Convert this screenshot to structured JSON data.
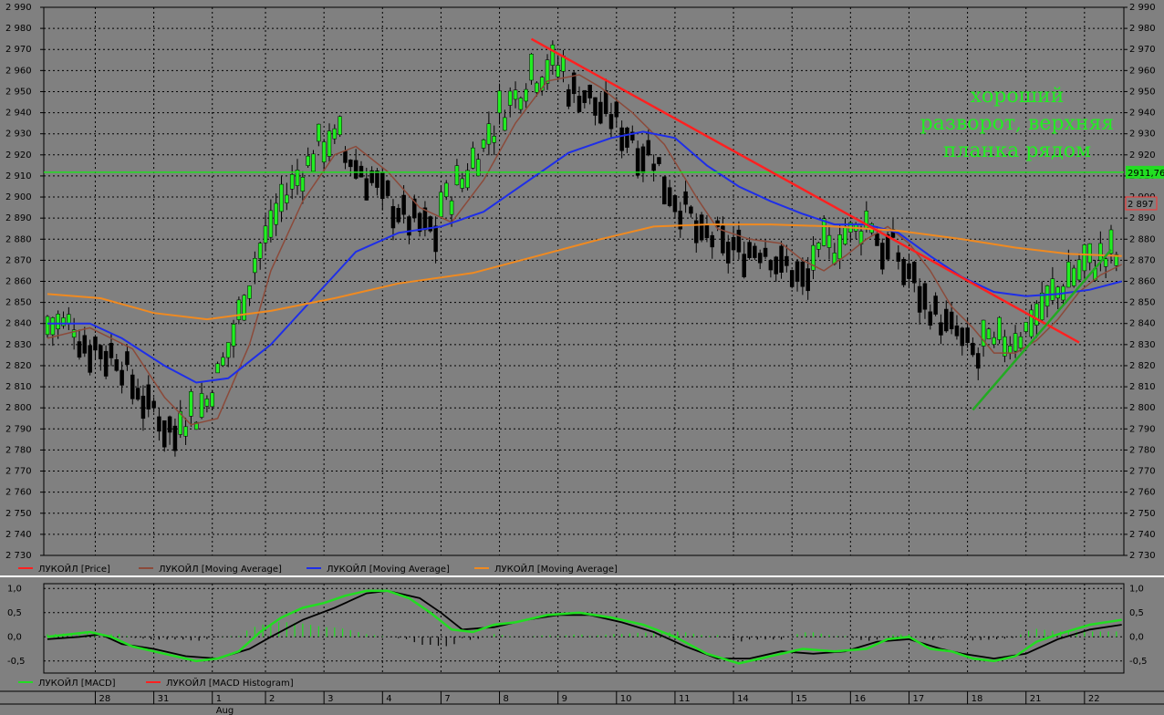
{
  "chart_data": [
    {
      "type": "candlestick",
      "series_legend": [
        "ЛУКОЙЛ [Price]",
        "ЛУКОЙЛ [Moving Average]",
        "ЛУКОЙЛ [Moving Average]",
        "ЛУКОЙЛ [Moving Average]"
      ],
      "legend_placement": "bottom-left",
      "grid": true,
      "ylim": [
        2730,
        2990
      ],
      "y_ticks": [
        2730,
        2740,
        2750,
        2760,
        2770,
        2780,
        2790,
        2800,
        2810,
        2820,
        2830,
        2840,
        2850,
        2860,
        2870,
        2880,
        2890,
        2900,
        2910,
        2920,
        2930,
        2940,
        2950,
        2960,
        2970,
        2980,
        2990
      ],
      "level_line": {
        "value": 2911.76,
        "label": "2911,76",
        "color": "#22dd22"
      },
      "last_price": {
        "value": 2897,
        "label": "2 897",
        "color": "#ff3030"
      },
      "annotation": {
        "lines": [
          "хороший",
          "разворот, верхняя",
          "планка рядом"
        ],
        "color": "#22ee22"
      },
      "trendlines": [
        {
          "color": "#ff2020",
          "from": {
            "bar": 91,
            "y": 2975
          },
          "to": {
            "bar": 194,
            "y": 2831
          }
        },
        {
          "color": "#22aa22",
          "from": {
            "bar": 174,
            "y": 2799
          },
          "to": {
            "bar": 200,
            "y": 2875
          }
        }
      ],
      "moving_averages": [
        {
          "color": "#8b4a3a",
          "points": [
            [
              0,
              2833
            ],
            [
              8,
              2838
            ],
            [
              16,
              2828
            ],
            [
              22,
              2805
            ],
            [
              27,
              2792
            ],
            [
              32,
              2795
            ],
            [
              38,
              2830
            ],
            [
              42,
              2865
            ],
            [
              48,
              2898
            ],
            [
              54,
              2920
            ],
            [
              58,
              2924
            ],
            [
              64,
              2912
            ],
            [
              70,
              2895
            ],
            [
              76,
              2888
            ],
            [
              82,
              2908
            ],
            [
              88,
              2935
            ],
            [
              94,
              2955
            ],
            [
              100,
              2958
            ],
            [
              104,
              2952
            ],
            [
              110,
              2940
            ],
            [
              116,
              2925
            ],
            [
              122,
              2900
            ],
            [
              126,
              2885
            ],
            [
              132,
              2880
            ],
            [
              138,
              2878
            ],
            [
              142,
              2870
            ],
            [
              146,
              2865
            ],
            [
              150,
              2872
            ],
            [
              154,
              2880
            ],
            [
              158,
              2886
            ],
            [
              162,
              2878
            ],
            [
              166,
              2865
            ],
            [
              170,
              2848
            ],
            [
              174,
              2838
            ],
            [
              178,
              2826
            ],
            [
              182,
              2826
            ],
            [
              186,
              2832
            ],
            [
              190,
              2842
            ],
            [
              194,
              2855
            ],
            [
              198,
              2863
            ],
            [
              202,
              2868
            ]
          ]
        },
        {
          "color": "#1e2ee8",
          "points": [
            [
              0,
              2840
            ],
            [
              8,
              2840
            ],
            [
              14,
              2833
            ],
            [
              22,
              2820
            ],
            [
              28,
              2812
            ],
            [
              34,
              2814
            ],
            [
              42,
              2830
            ],
            [
              50,
              2852
            ],
            [
              58,
              2874
            ],
            [
              66,
              2883
            ],
            [
              74,
              2886
            ],
            [
              82,
              2893
            ],
            [
              90,
              2907
            ],
            [
              98,
              2921
            ],
            [
              106,
              2928
            ],
            [
              112,
              2931
            ],
            [
              118,
              2928
            ],
            [
              124,
              2915
            ],
            [
              130,
              2905
            ],
            [
              136,
              2898
            ],
            [
              142,
              2892
            ],
            [
              148,
              2887
            ],
            [
              154,
              2887
            ],
            [
              160,
              2883
            ],
            [
              166,
              2872
            ],
            [
              172,
              2862
            ],
            [
              178,
              2855
            ],
            [
              184,
              2853
            ],
            [
              190,
              2854
            ],
            [
              196,
              2856
            ],
            [
              202,
              2860
            ]
          ]
        },
        {
          "color": "#f08a20",
          "points": [
            [
              0,
              2854
            ],
            [
              10,
              2852
            ],
            [
              20,
              2845
            ],
            [
              30,
              2842
            ],
            [
              42,
              2846
            ],
            [
              54,
              2852
            ],
            [
              66,
              2859
            ],
            [
              80,
              2864
            ],
            [
              92,
              2872
            ],
            [
              104,
              2880
            ],
            [
              114,
              2886
            ],
            [
              124,
              2887
            ],
            [
              136,
              2887
            ],
            [
              148,
              2886
            ],
            [
              160,
              2884
            ],
            [
              172,
              2880
            ],
            [
              182,
              2876
            ],
            [
              192,
              2873
            ],
            [
              202,
              2872
            ]
          ]
        }
      ]
    },
    {
      "type": "macd",
      "series_legend": [
        "ЛУКОЙЛ [MACD]",
        "ЛУКОЙЛ [MACD Histogram]"
      ],
      "legend_placement": "bottom-left",
      "grid": true,
      "ylim": [
        -0.75,
        1.1
      ],
      "y_ticks": [
        -0.5,
        0.0,
        0.5,
        1.0
      ],
      "y_tick_labels": [
        "-0,5",
        "0,0",
        "0,5",
        "1,0"
      ],
      "macd_color": "#22dd22",
      "signal_color": "#000000",
      "histogram_color": "#22dd22",
      "histogram_negative_color": "#000000",
      "macd_points": [
        [
          0,
          0.0
        ],
        [
          4,
          0.05
        ],
        [
          8,
          0.1
        ],
        [
          12,
          0.0
        ],
        [
          16,
          -0.2
        ],
        [
          20,
          -0.3
        ],
        [
          24,
          -0.4
        ],
        [
          28,
          -0.5
        ],
        [
          32,
          -0.45
        ],
        [
          36,
          -0.3
        ],
        [
          40,
          0.1
        ],
        [
          44,
          0.4
        ],
        [
          48,
          0.6
        ],
        [
          52,
          0.7
        ],
        [
          56,
          0.85
        ],
        [
          60,
          0.95
        ],
        [
          64,
          0.95
        ],
        [
          68,
          0.8
        ],
        [
          72,
          0.5
        ],
        [
          76,
          0.15
        ],
        [
          80,
          0.1
        ],
        [
          84,
          0.25
        ],
        [
          88,
          0.3
        ],
        [
          94,
          0.45
        ],
        [
          100,
          0.5
        ],
        [
          106,
          0.4
        ],
        [
          112,
          0.25
        ],
        [
          118,
          0.0
        ],
        [
          124,
          -0.35
        ],
        [
          130,
          -0.55
        ],
        [
          136,
          -0.4
        ],
        [
          142,
          -0.25
        ],
        [
          148,
          -0.3
        ],
        [
          154,
          -0.25
        ],
        [
          158,
          -0.05
        ],
        [
          162,
          0.0
        ],
        [
          166,
          -0.25
        ],
        [
          170,
          -0.3
        ],
        [
          174,
          -0.45
        ],
        [
          178,
          -0.5
        ],
        [
          182,
          -0.4
        ],
        [
          186,
          -0.1
        ],
        [
          190,
          0.05
        ],
        [
          196,
          0.25
        ],
        [
          202,
          0.35
        ]
      ],
      "signal_points": [
        [
          0,
          -0.05
        ],
        [
          6,
          0.0
        ],
        [
          10,
          0.05
        ],
        [
          14,
          -0.15
        ],
        [
          20,
          -0.25
        ],
        [
          26,
          -0.4
        ],
        [
          32,
          -0.45
        ],
        [
          38,
          -0.25
        ],
        [
          42,
          0.0
        ],
        [
          48,
          0.35
        ],
        [
          54,
          0.6
        ],
        [
          60,
          0.9
        ],
        [
          64,
          0.95
        ],
        [
          70,
          0.8
        ],
        [
          74,
          0.5
        ],
        [
          78,
          0.15
        ],
        [
          84,
          0.2
        ],
        [
          90,
          0.35
        ],
        [
          96,
          0.45
        ],
        [
          102,
          0.45
        ],
        [
          108,
          0.3
        ],
        [
          114,
          0.1
        ],
        [
          120,
          -0.2
        ],
        [
          126,
          -0.45
        ],
        [
          132,
          -0.45
        ],
        [
          138,
          -0.3
        ],
        [
          144,
          -0.35
        ],
        [
          150,
          -0.3
        ],
        [
          156,
          -0.1
        ],
        [
          162,
          -0.05
        ],
        [
          168,
          -0.25
        ],
        [
          172,
          -0.35
        ],
        [
          178,
          -0.45
        ],
        [
          184,
          -0.35
        ],
        [
          190,
          -0.05
        ],
        [
          196,
          0.15
        ],
        [
          202,
          0.25
        ]
      ]
    }
  ],
  "x_axis": {
    "labels": [
      {
        "bar": 9,
        "label": "28"
      },
      {
        "bar": 20,
        "label": "31"
      },
      {
        "bar": 31,
        "label": "1"
      },
      {
        "bar": 41,
        "label": "2"
      },
      {
        "bar": 52,
        "label": "3"
      },
      {
        "bar": 63,
        "label": "4"
      },
      {
        "bar": 74,
        "label": "7"
      },
      {
        "bar": 85,
        "label": "8"
      },
      {
        "bar": 96,
        "label": "9"
      },
      {
        "bar": 107,
        "label": "10"
      },
      {
        "bar": 118,
        "label": "11"
      },
      {
        "bar": 129,
        "label": "14"
      },
      {
        "bar": 140,
        "label": "15"
      },
      {
        "bar": 151,
        "label": "16"
      },
      {
        "bar": 162,
        "label": "17"
      },
      {
        "bar": 173,
        "label": "18"
      },
      {
        "bar": 184,
        "label": "21"
      },
      {
        "bar": 195,
        "label": "22"
      }
    ],
    "month_label": {
      "bar": 31,
      "label": "Aug"
    }
  }
}
